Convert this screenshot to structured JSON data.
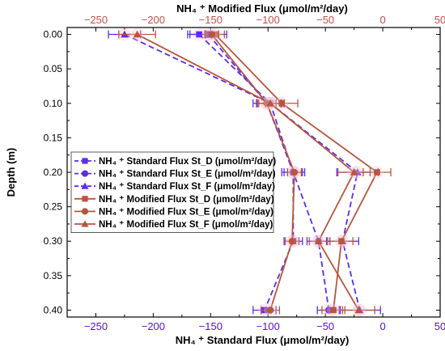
{
  "chart_data": {
    "type": "line",
    "orientation": "depth-profile",
    "title": "",
    "x_bottom_label": "NH₄ ⁺ Standard Flux (μmol/m²/day)",
    "x_top_label": "NH₄ ⁺ Modified Flux (μmol/m²/day)",
    "ylabel": "Depth (m)",
    "xlim_bottom": [
      -275,
      50
    ],
    "xlim_top": [
      -275,
      50
    ],
    "ylim": [
      0.41,
      -0.01
    ],
    "x_bottom_ticks": [
      -250,
      -200,
      -150,
      -100,
      -50,
      0,
      50
    ],
    "x_top_ticks": [
      -250,
      -200,
      -150,
      -100,
      -50,
      0,
      50
    ],
    "y_ticks": [
      0.0,
      0.05,
      0.1,
      0.15,
      0.2,
      0.25,
      0.3,
      0.35,
      0.4
    ],
    "y_tick_labels": [
      "0.00",
      "0.05",
      "0.10",
      "0.15",
      "0.20",
      "0.25",
      "0.30",
      "0.35",
      "0.40"
    ],
    "grid": false,
    "legend_position": "center-left",
    "colors": {
      "standard": "#5b2cf5",
      "modified": "#b8553e",
      "top_axis": "#c0504d",
      "bottom_axis": "#5a10d8"
    },
    "series": [
      {
        "name": "NH₄ ⁺ Standard Flux St_D (μmol/m²/day)",
        "group": "standard",
        "marker": "square",
        "x": [
          -160,
          -98,
          -78,
          -78,
          -103
        ],
        "y": [
          0.0,
          0.1,
          0.2,
          0.3,
          0.4
        ],
        "err": [
          10,
          12,
          8,
          8,
          10
        ]
      },
      {
        "name": "NH₄ ⁺ Standard Flux St_E (μmol/m²/day)",
        "group": "standard",
        "marker": "circle",
        "x": [
          -152,
          -101,
          -78,
          -56,
          -47
        ],
        "y": [
          0.0,
          0.1,
          0.2,
          0.3,
          0.4
        ],
        "err": [
          16,
          12,
          10,
          10,
          10
        ]
      },
      {
        "name": "NH₄ ⁺ Standard Flux St_F (μmol/m²/day)",
        "group": "standard",
        "marker": "triangle",
        "x": [
          -225,
          -98,
          -22,
          -35,
          -20
        ],
        "y": [
          0.0,
          0.1,
          0.2,
          0.3,
          0.4
        ],
        "err": [
          14,
          12,
          18,
          14,
          18
        ]
      },
      {
        "name": "NH₄ ⁺ Modified Flux St_D (μmol/m²/day)",
        "group": "modified",
        "marker": "square",
        "x": [
          -146,
          -88,
          -5,
          -36,
          -43
        ],
        "y": [
          0.0,
          0.1,
          0.2,
          0.3,
          0.4
        ],
        "err": [
          8,
          14,
          12,
          10,
          10
        ]
      },
      {
        "name": "NH₄ ⁺ Modified Flux St_E (μmol/m²/day)",
        "group": "modified",
        "marker": "circle",
        "x": [
          -149,
          -101,
          -77,
          -79,
          -98
        ],
        "y": [
          0.0,
          0.1,
          0.2,
          0.3,
          0.4
        ],
        "err": [
          6,
          8,
          6,
          6,
          8
        ]
      },
      {
        "name": "NH₄ ⁺ Modified Flux St_F (μmol/m²/day)",
        "group": "modified",
        "marker": "triangle",
        "x": [
          -214,
          -98,
          -25,
          -56,
          -21
        ],
        "y": [
          0.0,
          0.1,
          0.2,
          0.3,
          0.4
        ],
        "err": [
          16,
          10,
          14,
          8,
          14
        ]
      }
    ]
  }
}
